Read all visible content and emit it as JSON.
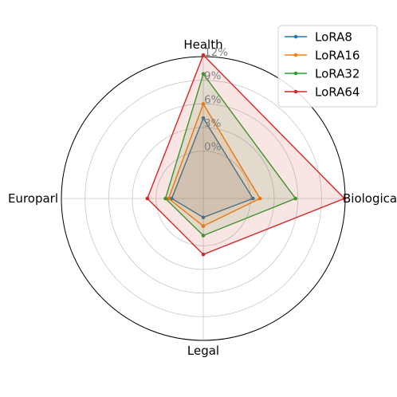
{
  "chart_data": {
    "type": "radar",
    "categories": [
      "Health",
      "Biological",
      "Legal",
      "Europarl"
    ],
    "radial_ticks": [
      "0%",
      "3%",
      "6%",
      "9%",
      "12%"
    ],
    "rlim": [
      -6,
      12
    ],
    "grid": true,
    "legend_position": "top-right",
    "series": [
      {
        "name": "LoRA8",
        "color": "#1f77b4",
        "values": [
          4.2,
          0.3,
          -3.6,
          -2.0
        ]
      },
      {
        "name": "LoRA16",
        "color": "#ff7f0e",
        "values": [
          6.0,
          1.2,
          -2.5,
          -1.6
        ]
      },
      {
        "name": "LoRA32",
        "color": "#2ca02c",
        "values": [
          9.8,
          5.7,
          -1.3,
          -1.2
        ]
      },
      {
        "name": "LoRA64",
        "color": "#d62728",
        "values": [
          12.2,
          11.9,
          1.1,
          1.1
        ]
      }
    ]
  }
}
